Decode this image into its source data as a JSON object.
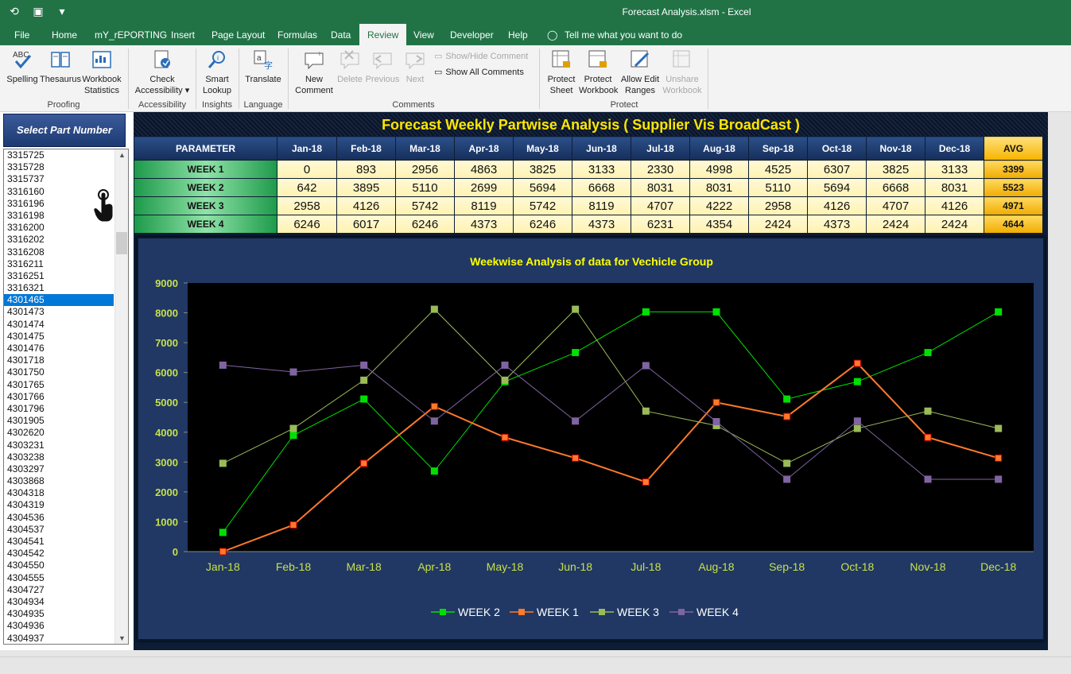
{
  "window": {
    "title": "Forecast Analysis.xlsm  -  Excel"
  },
  "tabs": [
    "File",
    "Home",
    "mY_rEPORTING",
    "Insert",
    "Page Layout",
    "Formulas",
    "Data",
    "Review",
    "View",
    "Developer",
    "Help"
  ],
  "active_tab": "Review",
  "tell_me": "Tell me what you want to do",
  "ribbon": {
    "proofing": {
      "label": "Proofing",
      "spelling": "Spelling",
      "thesaurus": "Thesaurus",
      "workbook": "Workbook",
      "statistics": "Statistics"
    },
    "accessibility": {
      "label": "Accessibility",
      "check": "Check",
      "accessibility": "Accessibility"
    },
    "insights": {
      "label": "Insights",
      "smart": "Smart",
      "lookup": "Lookup"
    },
    "language": {
      "label": "Language",
      "translate": "Translate"
    },
    "comments": {
      "label": "Comments",
      "new": "New",
      "comment": "Comment",
      "delete": "Delete",
      "previous": "Previous",
      "next": "Next",
      "show_hide": "Show/Hide Comment",
      "show_all": "Show All Comments"
    },
    "protect": {
      "label": "Protect",
      "protect1": "Protect",
      "sheet": "Sheet",
      "protect2": "Protect",
      "workbook": "Workbook",
      "allow_edit": "Allow Edit",
      "ranges": "Ranges",
      "unshare": "Unshare",
      "unshare_wb": "Workbook"
    }
  },
  "panel": {
    "select_label": "Select Part Number",
    "selected": "4301465",
    "items": [
      "3315725",
      "3315728",
      "3315737",
      "3316160",
      "3316196",
      "3316198",
      "3316200",
      "3316202",
      "3316208",
      "3316211",
      "3316251",
      "3316321",
      "4301465",
      "4301473",
      "4301474",
      "4301475",
      "4301476",
      "4301718",
      "4301750",
      "4301765",
      "4301766",
      "4301796",
      "4301905",
      "4302620",
      "4303231",
      "4303238",
      "4303297",
      "4303868",
      "4304318",
      "4304319",
      "4304536",
      "4304537",
      "4304541",
      "4304542",
      "4304550",
      "4304555",
      "4304727",
      "4304934",
      "4304935",
      "4304936",
      "4304937"
    ]
  },
  "dashboard": {
    "title": "Forecast Weekly  Partwise Analysis ( Supplier Vis BroadCast )",
    "param_header": "PARAMETER",
    "months": [
      "Jan-18",
      "Feb-18",
      "Mar-18",
      "Apr-18",
      "May-18",
      "Jun-18",
      "Jul-18",
      "Aug-18",
      "Sep-18",
      "Oct-18",
      "Nov-18",
      "Dec-18"
    ],
    "avg_header": "AVG",
    "rows": [
      {
        "label": "WEEK 1",
        "values": [
          0,
          893,
          2956,
          4863,
          3825,
          3133,
          2330,
          4998,
          4525,
          6307,
          3825,
          3133
        ],
        "avg": 3399
      },
      {
        "label": "WEEK 2",
        "values": [
          642,
          3895,
          5110,
          2699,
          5694,
          6668,
          8031,
          8031,
          5110,
          5694,
          6668,
          8031
        ],
        "avg": 5523
      },
      {
        "label": "WEEK 3",
        "values": [
          2958,
          4126,
          5742,
          8119,
          5742,
          8119,
          4707,
          4222,
          2958,
          4126,
          4707,
          4126
        ],
        "avg": 4971
      },
      {
        "label": "WEEK 4",
        "values": [
          6246,
          6017,
          6246,
          4373,
          6246,
          4373,
          6231,
          4354,
          2424,
          4373,
          2424,
          2424
        ],
        "avg": 4644
      }
    ]
  },
  "chart_data": {
    "type": "line",
    "title": "Weekwise Analysis of data for Vechicle Group",
    "categories": [
      "Jan-18",
      "Feb-18",
      "Mar-18",
      "Apr-18",
      "May-18",
      "Jun-18",
      "Jul-18",
      "Aug-18",
      "Sep-18",
      "Oct-18",
      "Nov-18",
      "Dec-18"
    ],
    "ylim": [
      0,
      9000
    ],
    "yticks": [
      0,
      1000,
      2000,
      3000,
      4000,
      5000,
      6000,
      7000,
      8000,
      9000
    ],
    "legend_position": "bottom",
    "series": [
      {
        "name": "WEEK 2",
        "color": "#00e000",
        "values": [
          642,
          3895,
          5110,
          2699,
          5694,
          6668,
          8031,
          8031,
          5110,
          5694,
          6668,
          8031
        ]
      },
      {
        "name": "WEEK 1",
        "color": "#ff7a2a",
        "values": [
          0,
          893,
          2956,
          4863,
          3825,
          3133,
          2330,
          4998,
          4525,
          6307,
          3825,
          3133
        ]
      },
      {
        "name": "WEEK 3",
        "color": "#9bbb59",
        "values": [
          2958,
          4126,
          5742,
          8119,
          5742,
          8119,
          4707,
          4222,
          2958,
          4126,
          4707,
          4126
        ]
      },
      {
        "name": "WEEK 4",
        "color": "#8064a2",
        "values": [
          6246,
          6017,
          6246,
          4373,
          6246,
          4373,
          6231,
          4354,
          2424,
          4373,
          2424,
          2424
        ]
      }
    ]
  }
}
